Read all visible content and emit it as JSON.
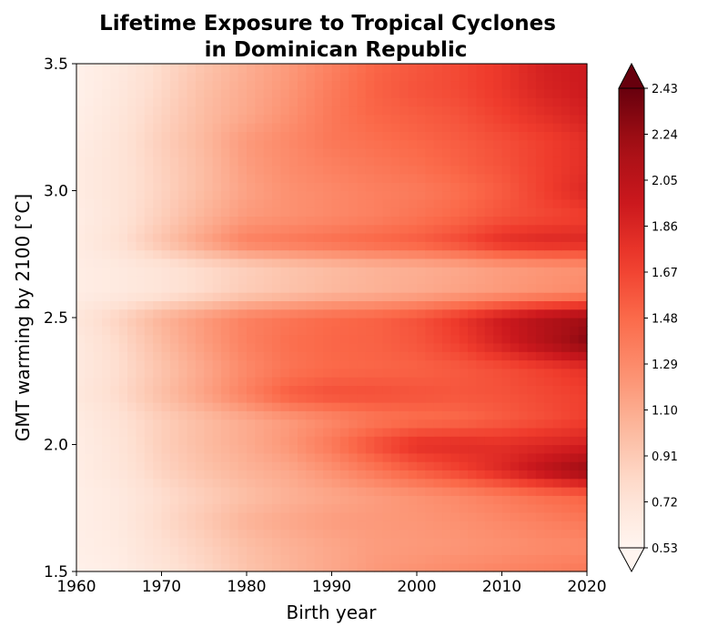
{
  "chart_data": {
    "type": "heatmap",
    "title": "Lifetime Exposure to Tropical Cyclones",
    "subtitle": "in Dominican Republic",
    "xlabel": "Birth year",
    "ylabel": "GMT warming by 2100 [°C]",
    "xlim": [
      1960,
      2020
    ],
    "ylim": [
      1.5,
      3.5
    ],
    "x_ticks": [
      "1960",
      "1970",
      "1980",
      "1990",
      "2000",
      "2010",
      "2020"
    ],
    "y_ticks": [
      "1.5",
      "2.0",
      "2.5",
      "3.0",
      "3.5"
    ],
    "colormap": "Reds",
    "colorbar": {
      "min": 0.53,
      "max": 2.43,
      "extend": "both",
      "ticks": [
        "0.53",
        "0.72",
        "0.91",
        "1.10",
        "1.29",
        "1.48",
        "1.67",
        "1.86",
        "2.05",
        "2.24",
        "2.43"
      ]
    },
    "x": [
      1960,
      1965,
      1970,
      1975,
      1980,
      1985,
      1990,
      1995,
      2000,
      2005,
      2010,
      2015,
      2020
    ],
    "y": [
      1.5,
      1.6,
      1.7,
      1.8,
      1.9,
      2.0,
      2.1,
      2.2,
      2.3,
      2.4,
      2.5,
      2.6,
      2.7,
      2.8,
      2.9,
      3.0,
      3.1,
      3.2,
      3.3,
      3.4,
      3.5
    ],
    "values": [
      [
        0.58,
        0.62,
        0.72,
        0.82,
        0.95,
        1.04,
        1.12,
        1.2,
        1.25,
        1.29,
        1.33,
        1.36,
        1.4
      ],
      [
        0.6,
        0.64,
        0.76,
        0.86,
        0.98,
        1.06,
        1.12,
        1.18,
        1.2,
        1.22,
        1.25,
        1.28,
        1.3
      ],
      [
        0.6,
        0.66,
        0.8,
        0.92,
        1.05,
        1.12,
        1.18,
        1.2,
        1.22,
        1.25,
        1.3,
        1.35,
        1.4
      ],
      [
        0.6,
        0.66,
        0.78,
        0.88,
        0.98,
        1.06,
        1.12,
        1.18,
        1.24,
        1.3,
        1.38,
        1.46,
        1.52
      ],
      [
        0.62,
        0.7,
        0.85,
        0.96,
        1.05,
        1.12,
        1.25,
        1.4,
        1.55,
        1.68,
        1.85,
        2.05,
        2.25
      ],
      [
        0.62,
        0.72,
        0.88,
        1.0,
        1.1,
        1.22,
        1.4,
        1.62,
        1.8,
        1.82,
        1.8,
        1.85,
        1.9
      ],
      [
        0.64,
        0.74,
        0.88,
        1.0,
        1.1,
        1.2,
        1.3,
        1.4,
        1.45,
        1.48,
        1.55,
        1.62,
        1.7
      ],
      [
        0.68,
        0.8,
        0.98,
        1.15,
        1.35,
        1.55,
        1.62,
        1.62,
        1.6,
        1.58,
        1.6,
        1.65,
        1.7
      ],
      [
        0.66,
        0.78,
        0.95,
        1.12,
        1.3,
        1.42,
        1.48,
        1.5,
        1.52,
        1.56,
        1.62,
        1.7,
        1.78
      ],
      [
        0.66,
        0.8,
        1.0,
        1.18,
        1.35,
        1.45,
        1.5,
        1.52,
        1.58,
        1.7,
        1.9,
        2.1,
        2.3
      ],
      [
        0.7,
        0.85,
        1.05,
        1.2,
        1.35,
        1.42,
        1.48,
        1.52,
        1.6,
        1.75,
        1.95,
        2.1,
        2.2
      ],
      [
        0.62,
        0.66,
        0.72,
        0.8,
        0.9,
        0.96,
        1.02,
        1.06,
        1.1,
        1.15,
        1.2,
        1.25,
        1.3
      ],
      [
        0.62,
        0.66,
        0.72,
        0.8,
        0.88,
        0.95,
        1.0,
        1.05,
        1.08,
        1.12,
        1.18,
        1.22,
        1.25
      ],
      [
        0.64,
        0.75,
        0.95,
        1.15,
        1.35,
        1.4,
        1.45,
        1.5,
        1.55,
        1.65,
        1.8,
        1.85,
        1.85
      ],
      [
        0.62,
        0.72,
        0.88,
        1.05,
        1.2,
        1.25,
        1.3,
        1.35,
        1.42,
        1.5,
        1.6,
        1.65,
        1.7
      ],
      [
        0.64,
        0.72,
        0.85,
        1.0,
        1.15,
        1.25,
        1.3,
        1.35,
        1.38,
        1.45,
        1.55,
        1.7,
        1.85
      ],
      [
        0.64,
        0.72,
        0.86,
        1.0,
        1.18,
        1.28,
        1.35,
        1.4,
        1.45,
        1.52,
        1.6,
        1.7,
        1.8
      ],
      [
        0.62,
        0.72,
        0.88,
        1.02,
        1.2,
        1.3,
        1.4,
        1.45,
        1.5,
        1.55,
        1.62,
        1.7,
        1.8
      ],
      [
        0.6,
        0.7,
        0.85,
        1.0,
        1.12,
        1.25,
        1.4,
        1.5,
        1.55,
        1.6,
        1.7,
        1.8,
        1.9
      ],
      [
        0.58,
        0.68,
        0.82,
        0.98,
        1.1,
        1.22,
        1.38,
        1.52,
        1.6,
        1.65,
        1.75,
        1.88,
        1.95
      ],
      [
        0.58,
        0.66,
        0.8,
        0.95,
        1.08,
        1.2,
        1.35,
        1.5,
        1.58,
        1.65,
        1.75,
        1.9,
        1.95
      ]
    ]
  }
}
